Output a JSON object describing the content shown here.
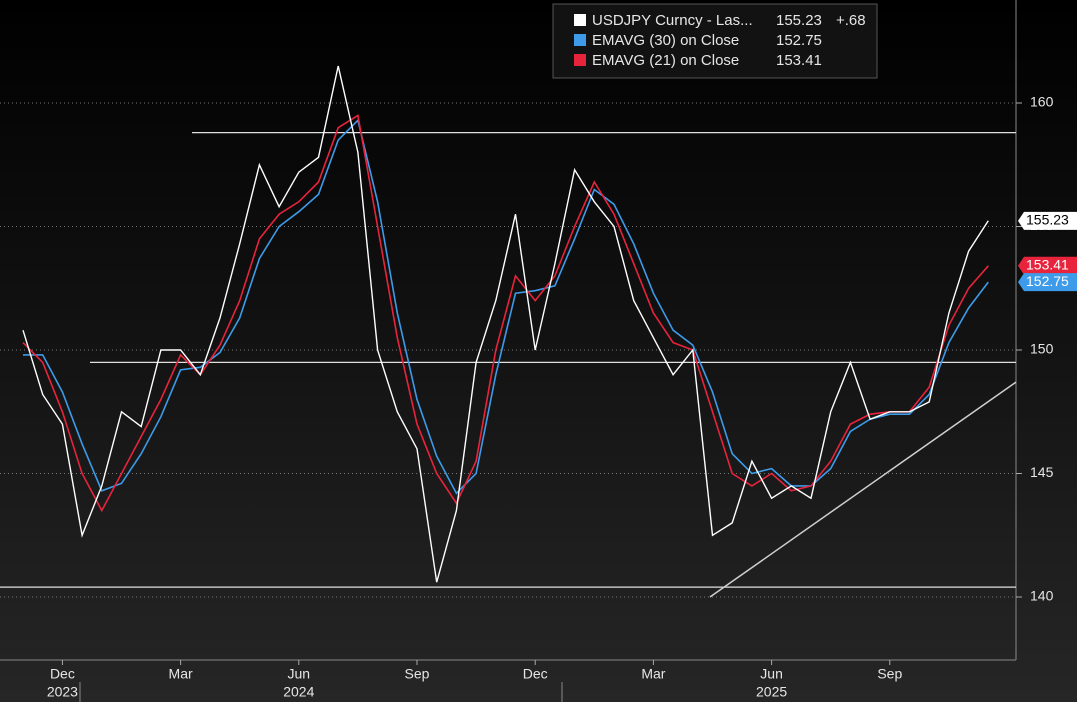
{
  "chart_data": {
    "type": "line",
    "categories": [
      null,
      null,
      "Dec",
      null,
      null,
      null,
      null,
      null,
      "Mar",
      null,
      null,
      null,
      null,
      null,
      "Jun",
      null,
      null,
      null,
      null,
      null,
      "Sep",
      null,
      null,
      null,
      null,
      null,
      "Dec",
      null,
      null,
      null,
      null,
      null,
      "Mar",
      null,
      null,
      null,
      null,
      null,
      "Jun",
      null,
      null,
      null,
      null,
      null,
      "Sep",
      null,
      null,
      null,
      null,
      null
    ],
    "category_years": [
      null,
      null,
      "2023",
      null,
      null,
      null,
      null,
      null,
      null,
      null,
      null,
      null,
      null,
      null,
      "2024",
      null,
      null,
      null,
      null,
      null,
      null,
      null,
      null,
      null,
      null,
      null,
      null,
      null,
      null,
      null,
      null,
      null,
      null,
      null,
      null,
      null,
      null,
      null,
      "2025",
      null,
      null,
      null,
      null,
      null,
      null,
      null,
      null,
      null,
      null,
      null
    ],
    "series": [
      {
        "name": "USDJPY Curncy - Las...",
        "color": "#ffffff",
        "change": "+.68",
        "values": [
          150.8,
          148.2,
          147.0,
          142.5,
          144.5,
          147.5,
          146.9,
          150.0,
          150.0,
          149.0,
          151.3,
          154.3,
          157.5,
          155.8,
          157.2,
          157.8,
          161.5,
          158.0,
          150.0,
          147.5,
          146.0,
          140.6,
          143.5,
          149.5,
          152.0,
          155.5,
          150.0,
          153.5,
          157.3,
          156.0,
          155.0,
          152.0,
          150.5,
          149.0,
          150.0,
          142.5,
          143.0,
          145.5,
          144.0,
          144.5,
          144.0,
          147.5,
          149.5,
          147.2,
          147.5,
          147.5,
          147.9,
          151.5,
          154.0,
          155.23
        ]
      },
      {
        "name": "EMAVG (30) on Close",
        "color": "#3d9be9",
        "values": [
          149.8,
          149.8,
          148.3,
          146.2,
          144.3,
          144.6,
          145.8,
          147.3,
          149.2,
          149.3,
          149.9,
          151.3,
          153.7,
          155.0,
          155.6,
          156.3,
          158.5,
          159.3,
          156.0,
          151.5,
          148.0,
          145.7,
          144.2,
          145.0,
          149.0,
          152.3,
          152.4,
          152.6,
          154.5,
          156.5,
          155.9,
          154.3,
          152.3,
          150.8,
          150.2,
          148.3,
          145.8,
          145.0,
          145.2,
          144.5,
          144.5,
          145.2,
          146.7,
          147.2,
          147.4,
          147.4,
          148.2,
          150.3,
          151.7,
          152.75
        ]
      },
      {
        "name": "EMAVG (21) on Close",
        "color": "#e8233c",
        "values": [
          150.3,
          149.5,
          147.5,
          145.0,
          143.5,
          145.0,
          146.5,
          148.0,
          149.8,
          149.0,
          150.2,
          152.0,
          154.5,
          155.5,
          156.0,
          156.8,
          159.0,
          159.5,
          155.0,
          150.5,
          147.0,
          145.0,
          143.8,
          145.5,
          150.0,
          153.0,
          152.0,
          153.0,
          155.0,
          156.8,
          155.5,
          153.5,
          151.5,
          150.3,
          150.0,
          147.5,
          145.0,
          144.5,
          145.0,
          144.3,
          144.5,
          145.5,
          147.0,
          147.4,
          147.5,
          147.5,
          148.5,
          151.0,
          152.5,
          153.41
        ]
      }
    ],
    "ylim": [
      137.45,
      164.17
    ],
    "yticks": [
      140,
      145,
      150,
      155,
      160
    ],
    "grid": true,
    "levels": [
      158.8,
      149.5,
      140.4
    ],
    "trendline": [
      140.0,
      148.7
    ]
  }
}
